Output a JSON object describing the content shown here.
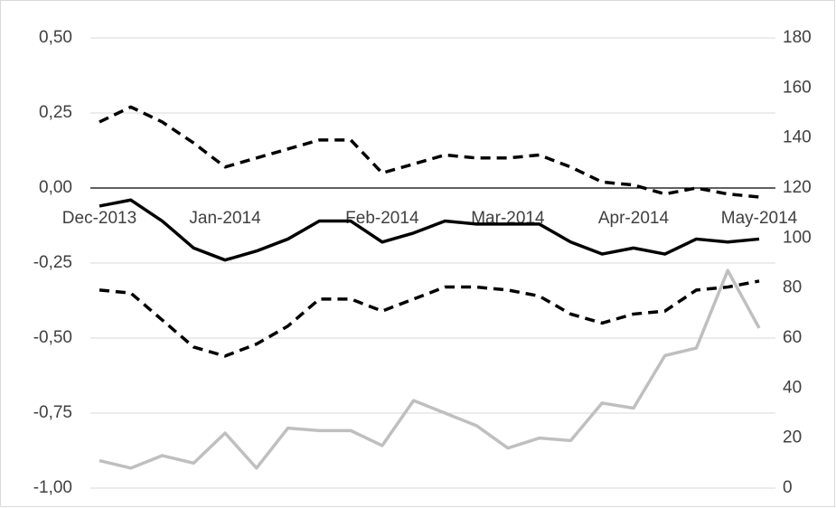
{
  "chart_data": {
    "type": "line",
    "categories": [
      "Dec-2013",
      null,
      null,
      null,
      "Jan-2014",
      null,
      null,
      null,
      null,
      "Feb-2014",
      null,
      null,
      null,
      "Mar-2014",
      null,
      null,
      null,
      "Apr-2014",
      null,
      null,
      null,
      "May-2014"
    ],
    "series": [
      {
        "color": "#000000",
        "dashed": true,
        "values": [
          0.22,
          0.27,
          0.22,
          0.15,
          0.07,
          0.1,
          0.13,
          0.16,
          0.16,
          0.05,
          0.08,
          0.11,
          0.1,
          0.1,
          0.11,
          0.07,
          0.02,
          0.01,
          -0.02,
          0.0,
          -0.02,
          -0.03
        ]
      },
      {
        "color": "#000000",
        "dashed": false,
        "values": [
          -0.06,
          -0.04,
          -0.11,
          -0.2,
          -0.24,
          -0.21,
          -0.17,
          -0.11,
          -0.11,
          -0.18,
          -0.15,
          -0.11,
          -0.12,
          -0.12,
          -0.12,
          -0.18,
          -0.22,
          -0.2,
          -0.22,
          -0.17,
          -0.18,
          -0.17
        ]
      },
      {
        "color": "#000000",
        "dashed": true,
        "values": [
          -0.34,
          -0.35,
          -0.44,
          -0.53,
          -0.56,
          -0.52,
          -0.46,
          -0.37,
          -0.37,
          -0.41,
          -0.37,
          -0.33,
          -0.33,
          -0.34,
          -0.36,
          -0.42,
          -0.45,
          -0.42,
          -0.41,
          -0.34,
          -0.33,
          -0.31
        ]
      },
      {
        "color": "#bfbfbf",
        "dashed": false,
        "axis": "y2",
        "values": [
          11,
          8,
          13,
          10,
          22,
          8,
          24,
          23,
          23,
          17,
          35,
          30,
          25,
          16,
          20,
          19,
          34,
          32,
          53,
          56,
          87,
          64
        ]
      }
    ],
    "ylim": [
      -1.0,
      0.5
    ],
    "yticks": [
      {
        "value": -1.0,
        "label": "-1,00"
      },
      {
        "value": -0.75,
        "label": "-0,75"
      },
      {
        "value": -0.5,
        "label": "-0,50"
      },
      {
        "value": -0.25,
        "label": "-0,25"
      },
      {
        "value": 0,
        "label": "0,00"
      },
      {
        "value": 0.25,
        "label": "0,25"
      },
      {
        "value": 0.5,
        "label": "0,50"
      }
    ],
    "y2lim": [
      0,
      180
    ],
    "y2ticks": [
      0,
      20,
      40,
      60,
      80,
      100,
      120,
      140,
      160,
      180
    ],
    "grid": true
  }
}
